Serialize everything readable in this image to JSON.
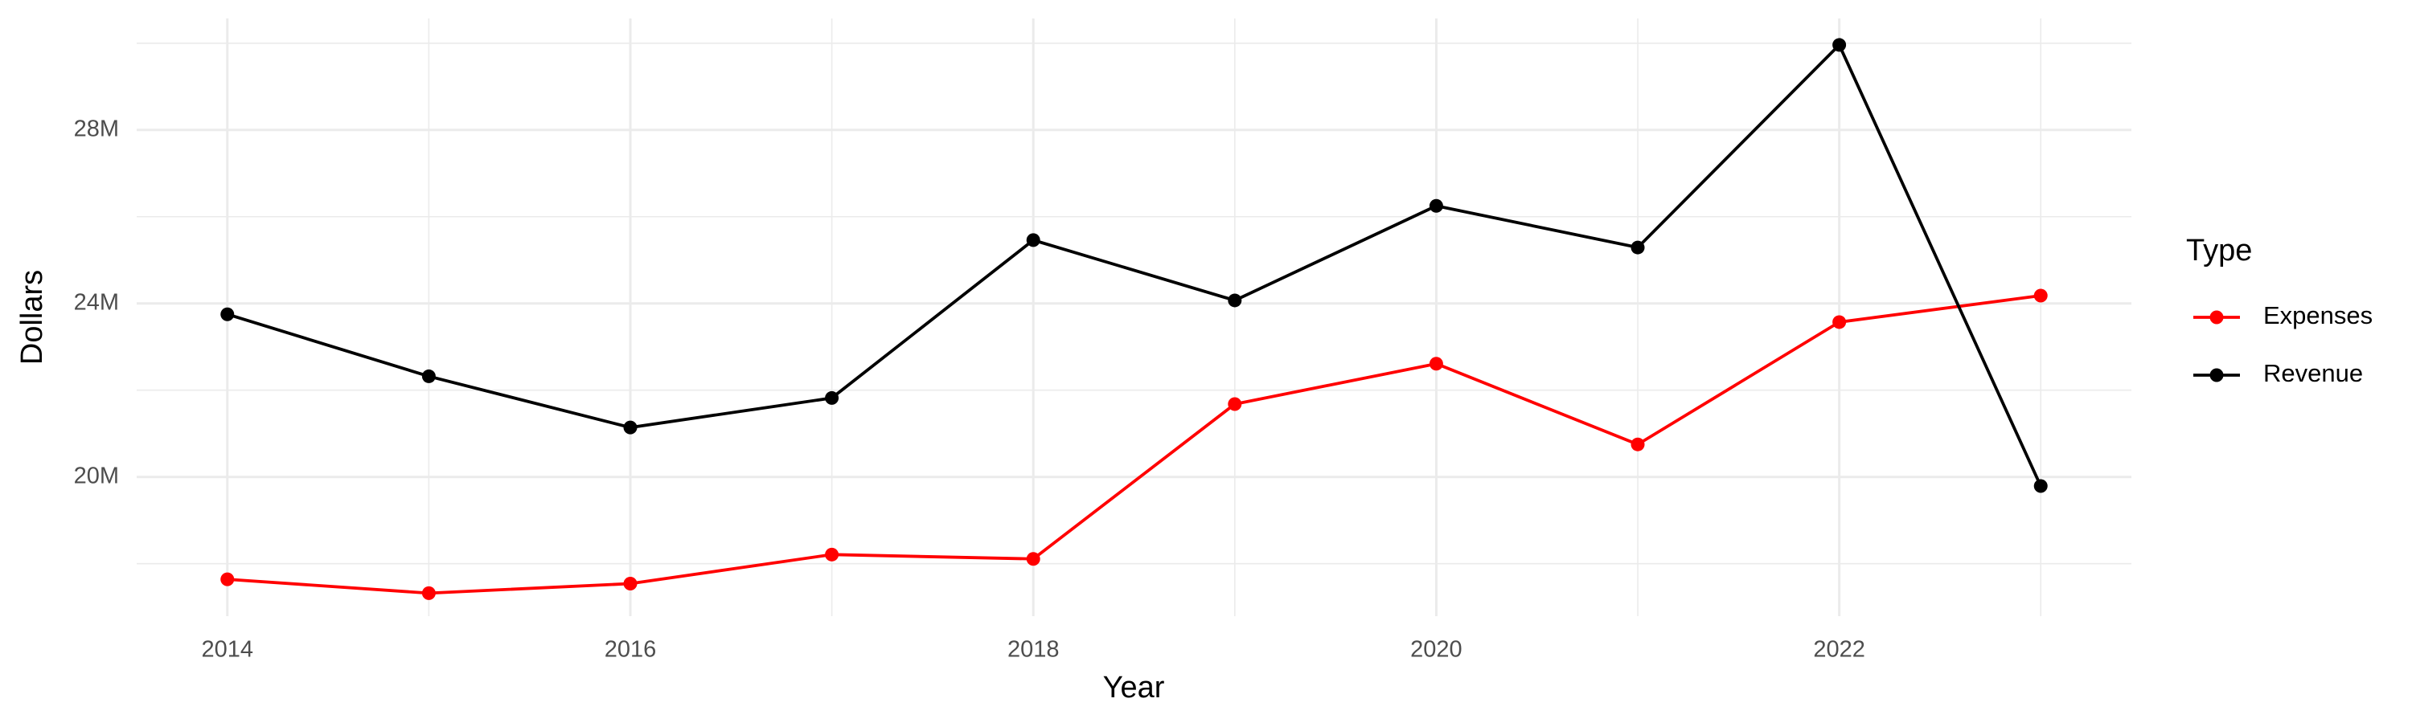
{
  "chart_data": {
    "type": "line",
    "x_label": "Year",
    "y_label": "Dollars",
    "legend_title": "Type",
    "legend_position": "right",
    "grid": true,
    "x": [
      2014,
      2015,
      2016,
      2017,
      2018,
      2019,
      2020,
      2021,
      2022,
      2023
    ],
    "series": [
      {
        "name": "Expenses",
        "color": "#ff0000",
        "values": [
          17640000,
          17320000,
          17540000,
          18210000,
          18110000,
          21680000,
          22610000,
          20750000,
          23570000,
          24180000
        ]
      },
      {
        "name": "Revenue",
        "color": "#000000",
        "values": [
          23750000,
          22320000,
          21140000,
          21820000,
          25460000,
          24070000,
          26250000,
          25290000,
          29960000,
          19790000
        ]
      }
    ],
    "xlim": [
      2013.55,
      2023.45
    ],
    "xticks": [
      2014,
      2016,
      2018,
      2020,
      2022
    ],
    "ylim": [
      16790000,
      30570000
    ],
    "yticks": [
      {
        "value": 20000000,
        "label": "20M"
      },
      {
        "value": 24000000,
        "label": "24M"
      },
      {
        "value": 28000000,
        "label": "28M"
      }
    ]
  }
}
